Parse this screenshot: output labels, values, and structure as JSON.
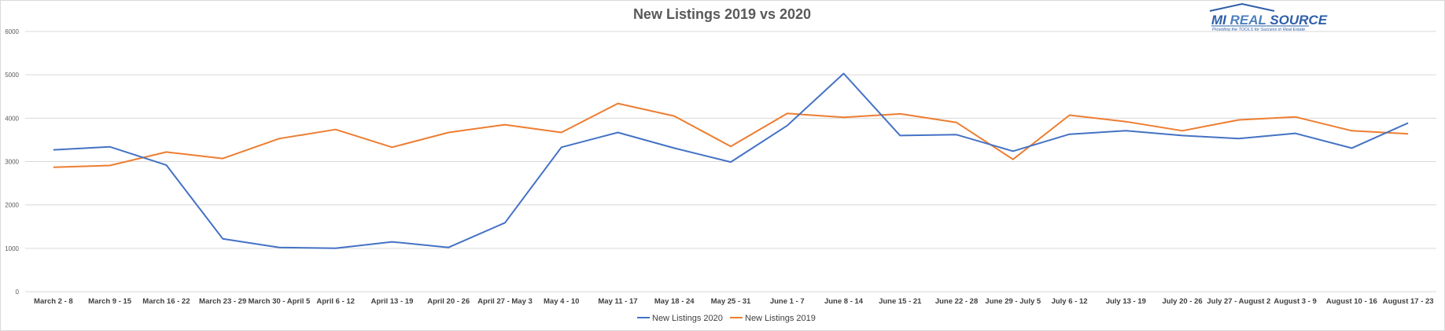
{
  "chart_data": {
    "type": "line",
    "title": "New Listings 2019 vs 2020",
    "xlabel": "",
    "ylabel": "",
    "ylim": [
      0,
      6000
    ],
    "yticks": [
      0,
      1000,
      2000,
      3000,
      4000,
      5000,
      6000
    ],
    "grid": true,
    "legend_position": "bottom",
    "categories": [
      "March 2 - 8",
      "March 9 - 15",
      "March 16 - 22",
      "March 23 - 29",
      "March 30 - April 5",
      "April 6 - 12",
      "April 13 - 19",
      "April 20 - 26",
      "April 27 - May 3",
      "May 4 - 10",
      "May 11 - 17",
      "May 18 - 24",
      "May 25 - 31",
      "June 1 - 7",
      "June 8 - 14",
      "June 15 - 21",
      "June 22 - 28",
      "June 29 - July 5",
      "July 6 - 12",
      "July 13 - 19",
      "July 20 - 26",
      "July 27 - August 2",
      "August 3 - 9",
      "August 10 - 16",
      "August 17 - 23"
    ],
    "series": [
      {
        "name": "New Listings 2020",
        "color": "#4472c4",
        "values": [
          3270,
          3340,
          2920,
          1220,
          1020,
          1000,
          1150,
          1020,
          1590,
          3330,
          3670,
          3310,
          2990,
          3830,
          5030,
          3600,
          3620,
          3240,
          3630,
          3710,
          3600,
          3530,
          3650,
          3310,
          3890
        ]
      },
      {
        "name": "New Listings 2019",
        "color": "#ed7d31",
        "values": [
          2870,
          2910,
          3220,
          3070,
          3530,
          3740,
          3330,
          3670,
          3850,
          3670,
          4340,
          4050,
          3350,
          4110,
          4020,
          4100,
          3900,
          3050,
          4070,
          3920,
          3710,
          3960,
          4030,
          3710,
          3640
        ]
      }
    ]
  },
  "logo": {
    "name": "MI REAL SOURCE",
    "tagline": "Providing the TOOLS for Success in Real Estate"
  }
}
